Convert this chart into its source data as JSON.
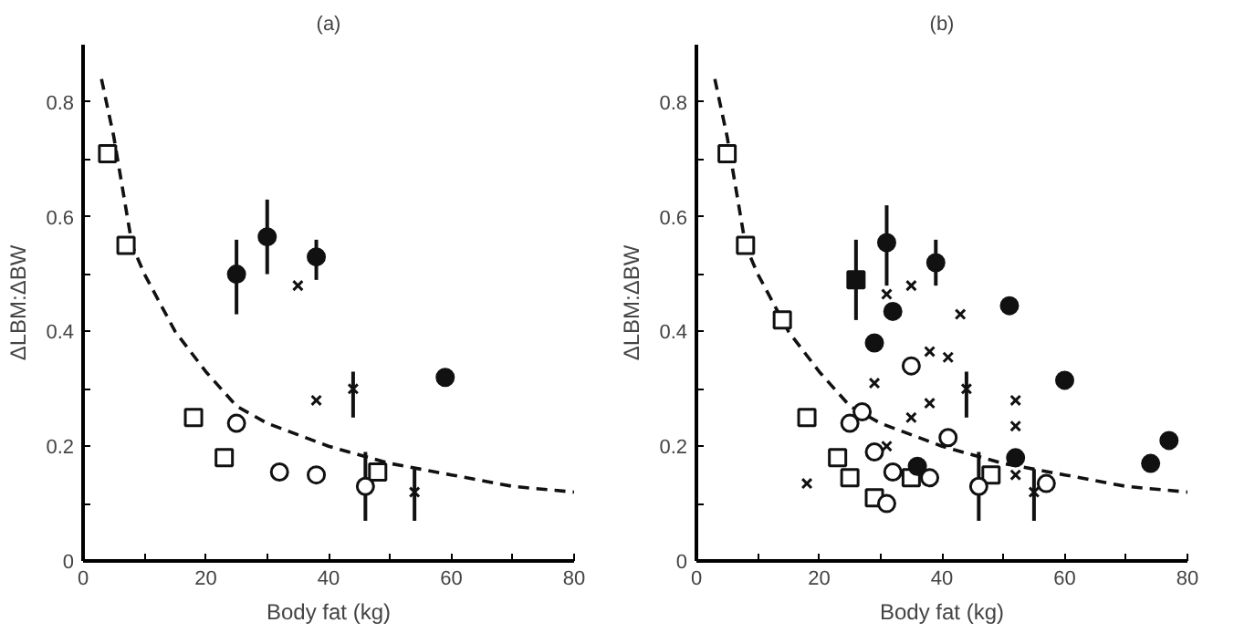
{
  "chart_data": [
    {
      "type": "scatter",
      "title": "(a)",
      "xlabel": "Body fat (kg)",
      "ylabel": "ΔLBM:ΔBW",
      "xlim": [
        0,
        80
      ],
      "ylim": [
        0,
        0.9
      ],
      "xticks": [
        0,
        {
          "value": 10,
          "label": null
        },
        20,
        {
          "value": 30,
          "label": null
        },
        40,
        {
          "value": 50,
          "label": null
        },
        60,
        {
          "value": 70,
          "label": null
        },
        80
      ],
      "yticks": [
        0,
        {
          "value": 0.1,
          "label": null
        },
        0.2,
        {
          "value": 0.3,
          "label": null
        },
        0.4,
        {
          "value": 0.5,
          "label": null
        },
        0.6,
        {
          "value": 0.7,
          "label": null
        },
        0.8
      ],
      "series": [
        {
          "type": "line",
          "line_style": "dashed",
          "marker": "none",
          "color": "#111111",
          "x": [
            3,
            5,
            8,
            10,
            15,
            20,
            25,
            30,
            35,
            40,
            45,
            50,
            55,
            60,
            70,
            80
          ],
          "values": [
            0.84,
            0.74,
            0.55,
            0.5,
            0.4,
            0.33,
            0.27,
            0.24,
            0.22,
            0.2,
            0.185,
            0.17,
            0.16,
            0.15,
            0.13,
            0.12
          ]
        },
        {
          "marker": "square",
          "color": "#ffffff",
          "x": [
            4,
            7,
            18,
            23,
            48
          ],
          "values": [
            0.71,
            0.55,
            0.25,
            0.18,
            0.155
          ]
        },
        {
          "marker": "circle",
          "color": "#ffffff",
          "x": [
            25,
            32,
            38,
            46
          ],
          "values": [
            0.24,
            0.155,
            0.15,
            0.13
          ],
          "errors": [
            null,
            null,
            null,
            [
              0.07,
              0.19
            ]
          ]
        },
        {
          "marker": "circle",
          "color": "#111111",
          "x": [
            25,
            30,
            38,
            59
          ],
          "values": [
            0.5,
            0.565,
            0.53,
            0.32
          ],
          "errors": [
            [
              0.43,
              0.56
            ],
            [
              0.5,
              0.63
            ],
            [
              0.49,
              0.56
            ],
            null
          ]
        },
        {
          "marker": "cross",
          "color": "#111111",
          "x": [
            35,
            38,
            44,
            54
          ],
          "values": [
            0.48,
            0.28,
            0.3,
            0.12
          ],
          "errors": [
            null,
            null,
            [
              0.25,
              0.33
            ],
            [
              0.07,
              0.16
            ]
          ]
        }
      ]
    },
    {
      "type": "scatter",
      "title": "(b)",
      "xlabel": "Body fat (kg)",
      "ylabel": "ΔLBM:ΔBW",
      "xlim": [
        0,
        80
      ],
      "ylim": [
        0,
        0.9
      ],
      "xticks": [
        0,
        {
          "value": 10,
          "label": null
        },
        20,
        {
          "value": 30,
          "label": null
        },
        40,
        {
          "value": 50,
          "label": null
        },
        60,
        {
          "value": 70,
          "label": null
        },
        80
      ],
      "yticks": [
        0,
        {
          "value": 0.1,
          "label": null
        },
        0.2,
        {
          "value": 0.3,
          "label": null
        },
        0.4,
        {
          "value": 0.5,
          "label": null
        },
        0.6,
        {
          "value": 0.7,
          "label": null
        },
        0.8
      ],
      "series": [
        {
          "type": "line",
          "line_style": "dashed",
          "marker": "none",
          "color": "#111111",
          "x": [
            3,
            5,
            8,
            10,
            15,
            20,
            25,
            30,
            35,
            40,
            45,
            50,
            55,
            60,
            70,
            80
          ],
          "values": [
            0.84,
            0.74,
            0.55,
            0.5,
            0.4,
            0.33,
            0.27,
            0.24,
            0.22,
            0.2,
            0.185,
            0.17,
            0.16,
            0.15,
            0.13,
            0.12
          ]
        },
        {
          "marker": "square",
          "color": "#ffffff",
          "x": [
            5,
            8,
            14,
            18,
            23,
            25,
            29,
            35,
            48
          ],
          "values": [
            0.71,
            0.55,
            0.42,
            0.25,
            0.18,
            0.145,
            0.11,
            0.145,
            0.15
          ]
        },
        {
          "marker": "square",
          "color": "#111111",
          "x": [
            26
          ],
          "values": [
            0.49
          ],
          "errors": [
            [
              0.42,
              0.56
            ]
          ]
        },
        {
          "marker": "circle",
          "color": "#ffffff",
          "x": [
            25,
            27,
            29,
            32,
            35,
            38,
            41,
            46,
            31,
            57
          ],
          "values": [
            0.24,
            0.26,
            0.19,
            0.155,
            0.34,
            0.145,
            0.215,
            0.13,
            0.1,
            0.135
          ],
          "errors": [
            null,
            null,
            null,
            null,
            null,
            null,
            null,
            [
              0.07,
              0.19
            ],
            null,
            null
          ]
        },
        {
          "marker": "circle",
          "color": "#111111",
          "x": [
            31,
            39,
            32,
            29,
            51,
            36,
            52,
            60,
            74,
            77
          ],
          "values": [
            0.555,
            0.52,
            0.435,
            0.38,
            0.445,
            0.165,
            0.18,
            0.315,
            0.17,
            0.21
          ],
          "errors": [
            [
              0.48,
              0.62
            ],
            [
              0.48,
              0.56
            ],
            null,
            null,
            null,
            null,
            null,
            null,
            null,
            null
          ]
        },
        {
          "marker": "cross",
          "color": "#111111",
          "x": [
            18,
            31,
            35,
            43,
            38,
            41,
            29,
            35,
            38,
            44,
            52,
            52,
            31,
            52,
            55
          ],
          "values": [
            0.135,
            0.465,
            0.48,
            0.43,
            0.365,
            0.355,
            0.31,
            0.25,
            0.275,
            0.3,
            0.28,
            0.235,
            0.2,
            0.15,
            0.12
          ],
          "errors": [
            null,
            null,
            null,
            null,
            null,
            null,
            null,
            null,
            null,
            [
              0.25,
              0.33
            ],
            null,
            null,
            null,
            null,
            [
              0.07,
              0.16
            ]
          ]
        }
      ]
    }
  ]
}
